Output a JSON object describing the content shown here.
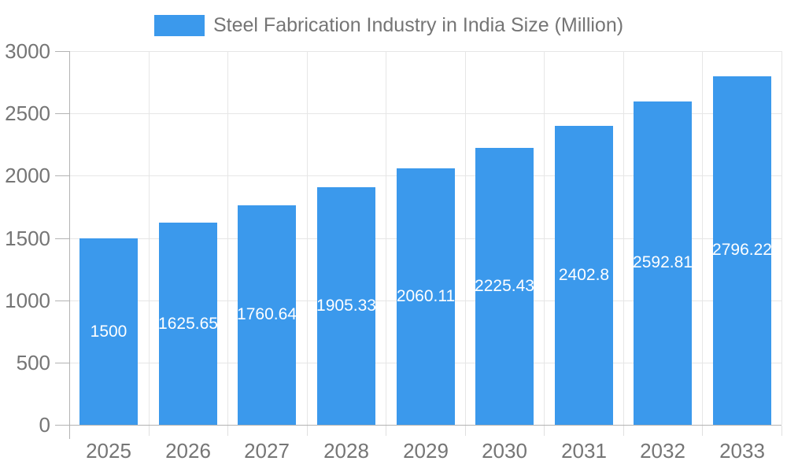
{
  "legend": {
    "label": "Steel Fabrication Industry in India Size (Million)",
    "position": "top"
  },
  "chart_data": {
    "type": "bar",
    "title": "Steel Fabrication Industry in India Size (Million)",
    "categories": [
      "2025",
      "2026",
      "2027",
      "2028",
      "2029",
      "2030",
      "2031",
      "2032",
      "2033"
    ],
    "series": [
      {
        "name": "Steel Fabrication Industry in India Size (Million)",
        "values": [
          1500,
          1625.65,
          1760.64,
          1905.33,
          2060.11,
          2225.43,
          2402.8,
          2592.81,
          2796.22
        ],
        "labels": [
          "1500",
          "1625.65",
          "1760.64",
          "1905.33",
          "2060.11",
          "2225.43",
          "2402.8",
          "2592.81",
          "2796.22"
        ]
      }
    ],
    "xlabel": "",
    "ylabel": "",
    "ylim": [
      0,
      3000
    ],
    "yticks": [
      0,
      500,
      1000,
      1500,
      2000,
      2500,
      3000
    ],
    "grid": true,
    "legend_position": "top",
    "colors": {
      "bar": "#3B99EC",
      "data_label": "#ffffff",
      "axis_text": "#757575",
      "grid_line": "#e6e6e6",
      "axis_line": "#b3b3b3"
    }
  }
}
